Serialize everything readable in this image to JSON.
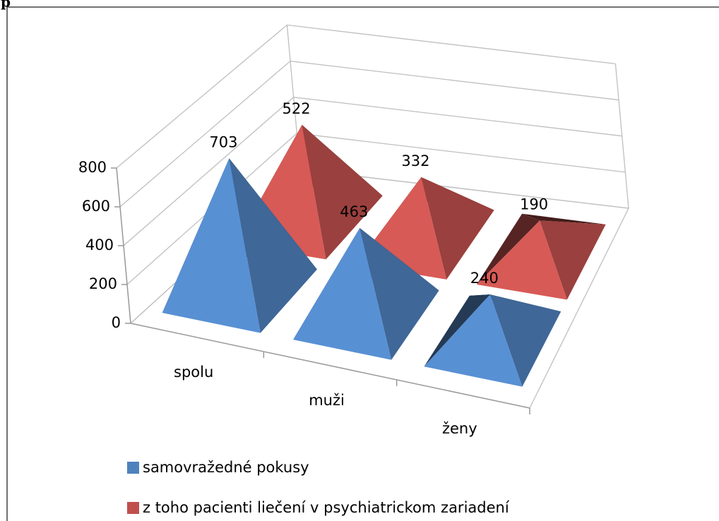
{
  "heading": "p",
  "chart_data": {
    "type": "pyramid3d",
    "categories": [
      "spolu",
      "muži",
      "ženy"
    ],
    "series": [
      {
        "name": "samovražedné pokusy",
        "color": "#4f81bd",
        "values": [
          703,
          463,
          240
        ]
      },
      {
        "name": "z toho pacienti liečení v psychiatrickom zariadení",
        "color": "#c0504d",
        "values": [
          522,
          332,
          190
        ]
      }
    ],
    "ylim": [
      0,
      800
    ],
    "yticks": [
      0,
      200,
      400,
      600,
      800
    ],
    "grid": true,
    "legend": "bottom"
  }
}
